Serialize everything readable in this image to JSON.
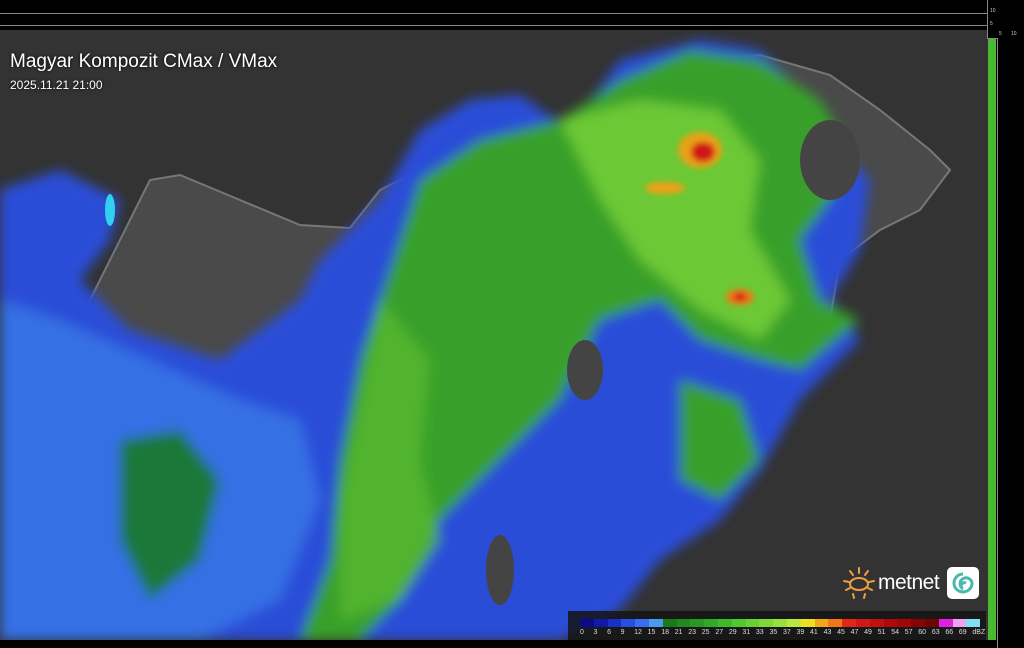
{
  "header": {
    "title": "Magyar Kompozit CMax / VMax",
    "timestamp": "2025.11.21 21:00"
  },
  "axes": {
    "top_ticks": [
      "10",
      "5"
    ],
    "right_ticks": [
      "5",
      "10"
    ]
  },
  "legend": {
    "unit": "dBZ",
    "labels": [
      "0",
      "3",
      "6",
      "9",
      "12",
      "15",
      "18",
      "21",
      "23",
      "25",
      "27",
      "29",
      "31",
      "33",
      "35",
      "37",
      "39",
      "41",
      "43",
      "45",
      "47",
      "49",
      "51",
      "54",
      "57",
      "60",
      "63",
      "66",
      "69"
    ],
    "colors": [
      "#0a0a8a",
      "#0e1aa8",
      "#1830c8",
      "#2a4ee0",
      "#3a6ef0",
      "#4a9af0",
      "#1a7a1a",
      "#208a20",
      "#289a24",
      "#30aa28",
      "#3cba2c",
      "#50c830",
      "#68d034",
      "#80d838",
      "#98e03c",
      "#b8e840",
      "#e8e020",
      "#f0a818",
      "#f07818",
      "#e02818",
      "#d01818",
      "#c01010",
      "#b00808",
      "#a00808",
      "#880404",
      "#700404",
      "#e020e0",
      "#f0a0f0",
      "#80e0f0"
    ]
  },
  "logo": {
    "brand": "metnet",
    "sun_color": "#f0a040",
    "icon_color": "#4ab8b0"
  },
  "map": {
    "background": "#3a3a3a",
    "country_fill": "#555555",
    "low_color": "#2a50e0",
    "mid_color": "#3aa82a",
    "high_color": "#e02818"
  }
}
